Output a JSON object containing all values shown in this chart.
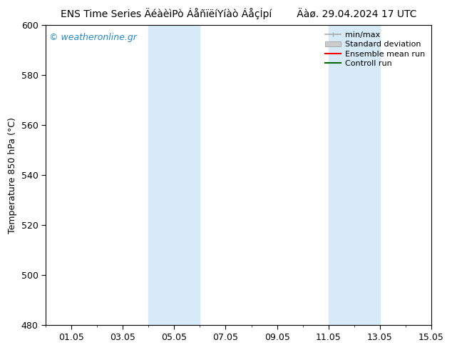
{
  "title_left": "ENS Time Series ÄéàèìPò ÁåñïëíYíàò ÁåçÍpí",
  "title_right": "Äàø. 29.04.2024 17 UTC",
  "ylabel": "Temperature 850 hPa (°C)",
  "watermark": "© weatheronline.gr",
  "ylim": [
    480,
    600
  ],
  "yticks": [
    480,
    500,
    520,
    540,
    560,
    580,
    600
  ],
  "xlim": [
    0.0,
    15.0
  ],
  "x_tick_positions": [
    1,
    3,
    5,
    7,
    9,
    11,
    13,
    15
  ],
  "x_labels": [
    "01.05",
    "03.05",
    "05.05",
    "07.05",
    "09.05",
    "11.05",
    "13.05",
    "15.05"
  ],
  "shaded_bands": [
    {
      "x_start": 4.0,
      "x_end": 4.5
    },
    {
      "x_start": 4.5,
      "x_end": 5.5
    },
    {
      "x_start": 5.5,
      "x_end": 6.0
    },
    {
      "x_start": 11.0,
      "x_end": 11.5
    },
    {
      "x_start": 11.5,
      "x_end": 12.5
    },
    {
      "x_start": 12.5,
      "x_end": 13.0
    }
  ],
  "band_colors": [
    "#ddeeff",
    "#cce4f5",
    "#ddeeff",
    "#ddeeff",
    "#cce4f5",
    "#ddeeff"
  ],
  "background_color": "#ffffff",
  "legend_items": [
    {
      "label": "min/max",
      "color": "#999999"
    },
    {
      "label": "Standard deviation",
      "color": "#cccccc"
    },
    {
      "label": "Ensemble mean run",
      "color": "#ff0000"
    },
    {
      "label": "Controll run",
      "color": "#008000"
    }
  ],
  "title_fontsize": 10,
  "ylabel_fontsize": 9,
  "tick_fontsize": 9,
  "legend_fontsize": 8,
  "watermark_fontsize": 9
}
